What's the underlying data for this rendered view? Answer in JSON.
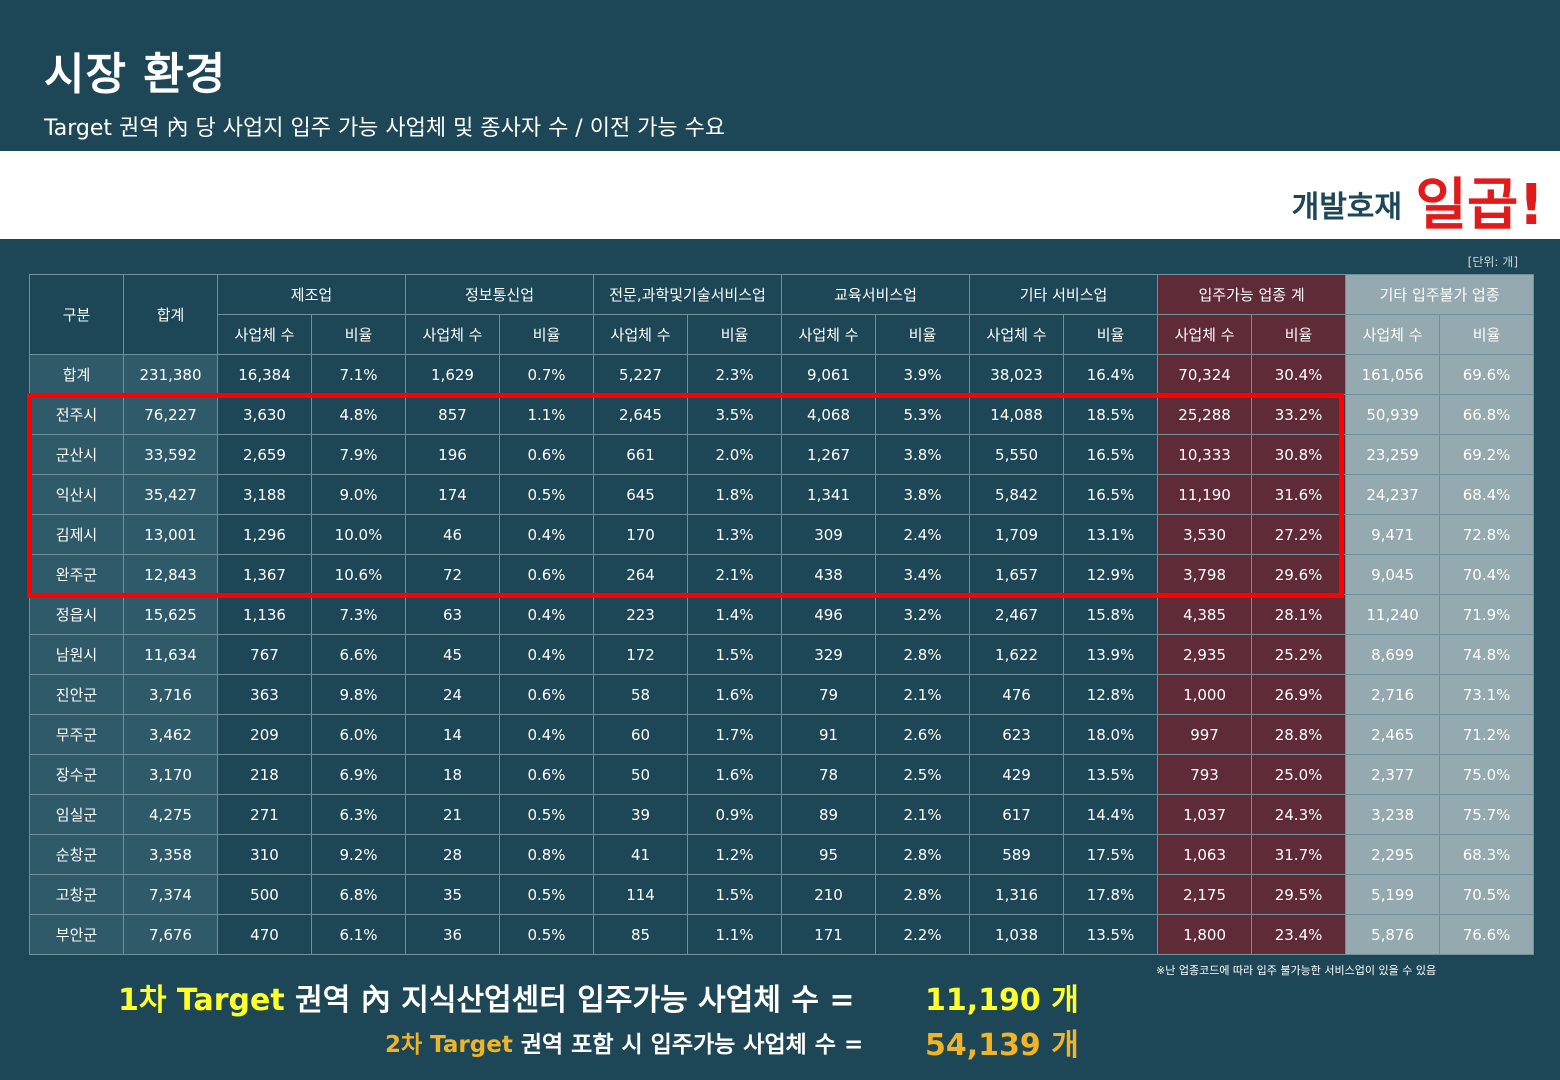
{
  "header": {
    "title": "시장 환경",
    "subtitle": "Target 권역 內 당 사업지 입주 가능 사업체 및 종사자 수 / 이전 가능 수요"
  },
  "band": {
    "left_text": "개발호재",
    "right_text": "일곱!"
  },
  "unit_label": "[단위: 개]",
  "table": {
    "col_region": "구분",
    "col_total": "합계",
    "groups": [
      "제조업",
      "정보통신업",
      "전문,과학및기술서비스업",
      "교육서비스업",
      "기타 서비스업",
      "입주가능 업종 계",
      "기타 입주불가 업종"
    ],
    "sub_count": "사업체 수",
    "sub_ratio": "비율",
    "rows": [
      {
        "name": "합계",
        "total": "231,380",
        "cells": [
          "16,384",
          "7.1%",
          "1,629",
          "0.7%",
          "5,227",
          "2.3%",
          "9,061",
          "3.9%",
          "38,023",
          "16.4%",
          "70,324",
          "30.4%",
          "161,056",
          "69.6%"
        ]
      },
      {
        "name": "전주시",
        "total": "76,227",
        "cells": [
          "3,630",
          "4.8%",
          "857",
          "1.1%",
          "2,645",
          "3.5%",
          "4,068",
          "5.3%",
          "14,088",
          "18.5%",
          "25,288",
          "33.2%",
          "50,939",
          "66.8%"
        ]
      },
      {
        "name": "군산시",
        "total": "33,592",
        "cells": [
          "2,659",
          "7.9%",
          "196",
          "0.6%",
          "661",
          "2.0%",
          "1,267",
          "3.8%",
          "5,550",
          "16.5%",
          "10,333",
          "30.8%",
          "23,259",
          "69.2%"
        ]
      },
      {
        "name": "익산시",
        "total": "35,427",
        "cells": [
          "3,188",
          "9.0%",
          "174",
          "0.5%",
          "645",
          "1.8%",
          "1,341",
          "3.8%",
          "5,842",
          "16.5%",
          "11,190",
          "31.6%",
          "24,237",
          "68.4%"
        ]
      },
      {
        "name": "김제시",
        "total": "13,001",
        "cells": [
          "1,296",
          "10.0%",
          "46",
          "0.4%",
          "170",
          "1.3%",
          "309",
          "2.4%",
          "1,709",
          "13.1%",
          "3,530",
          "27.2%",
          "9,471",
          "72.8%"
        ]
      },
      {
        "name": "완주군",
        "total": "12,843",
        "cells": [
          "1,367",
          "10.6%",
          "72",
          "0.6%",
          "264",
          "2.1%",
          "438",
          "3.4%",
          "1,657",
          "12.9%",
          "3,798",
          "29.6%",
          "9,045",
          "70.4%"
        ]
      },
      {
        "name": "정읍시",
        "total": "15,625",
        "cells": [
          "1,136",
          "7.3%",
          "63",
          "0.4%",
          "223",
          "1.4%",
          "496",
          "3.2%",
          "2,467",
          "15.8%",
          "4,385",
          "28.1%",
          "11,240",
          "71.9%"
        ]
      },
      {
        "name": "남원시",
        "total": "11,634",
        "cells": [
          "767",
          "6.6%",
          "45",
          "0.4%",
          "172",
          "1.5%",
          "329",
          "2.8%",
          "1,622",
          "13.9%",
          "2,935",
          "25.2%",
          "8,699",
          "74.8%"
        ]
      },
      {
        "name": "진안군",
        "total": "3,716",
        "cells": [
          "363",
          "9.8%",
          "24",
          "0.6%",
          "58",
          "1.6%",
          "79",
          "2.1%",
          "476",
          "12.8%",
          "1,000",
          "26.9%",
          "2,716",
          "73.1%"
        ]
      },
      {
        "name": "무주군",
        "total": "3,462",
        "cells": [
          "209",
          "6.0%",
          "14",
          "0.4%",
          "60",
          "1.7%",
          "91",
          "2.6%",
          "623",
          "18.0%",
          "997",
          "28.8%",
          "2,465",
          "71.2%"
        ]
      },
      {
        "name": "장수군",
        "total": "3,170",
        "cells": [
          "218",
          "6.9%",
          "18",
          "0.6%",
          "50",
          "1.6%",
          "78",
          "2.5%",
          "429",
          "13.5%",
          "793",
          "25.0%",
          "2,377",
          "75.0%"
        ]
      },
      {
        "name": "임실군",
        "total": "4,275",
        "cells": [
          "271",
          "6.3%",
          "21",
          "0.5%",
          "39",
          "0.9%",
          "89",
          "2.1%",
          "617",
          "14.4%",
          "1,037",
          "24.3%",
          "3,238",
          "75.7%"
        ]
      },
      {
        "name": "순창군",
        "total": "3,358",
        "cells": [
          "310",
          "9.2%",
          "28",
          "0.8%",
          "41",
          "1.2%",
          "95",
          "2.8%",
          "589",
          "17.5%",
          "1,063",
          "31.7%",
          "2,295",
          "68.3%"
        ]
      },
      {
        "name": "고창군",
        "total": "7,374",
        "cells": [
          "500",
          "6.8%",
          "35",
          "0.5%",
          "114",
          "1.5%",
          "210",
          "2.8%",
          "1,316",
          "17.8%",
          "2,175",
          "29.5%",
          "5,199",
          "70.5%"
        ]
      },
      {
        "name": "부안군",
        "total": "7,676",
        "cells": [
          "470",
          "6.1%",
          "36",
          "0.5%",
          "85",
          "1.1%",
          "171",
          "2.2%",
          "1,038",
          "13.5%",
          "1,800",
          "23.4%",
          "5,876",
          "76.6%"
        ]
      }
    ]
  },
  "note": "※난 업종코드에 따라 입주 불가능한 서비스업이 있을 수 있음",
  "summary": {
    "line1_prefix": "1차 Target",
    "line1_text": " 권역 內 지식산업센터 입주가능 사업체 수 =",
    "line1_value": "11,190 개",
    "line2_prefix": "2차 Target",
    "line2_text": " 권역 포함 시 입주가능 사업체 수 =",
    "line2_value": "54,139 개"
  },
  "colors": {
    "background": "#1d4756",
    "highlight_box": "#ff0000",
    "available_column": "#5f2b36",
    "other_column": "#95a9b0",
    "line1_accent": "#ffff2e",
    "line2_accent": "#f0b428"
  }
}
